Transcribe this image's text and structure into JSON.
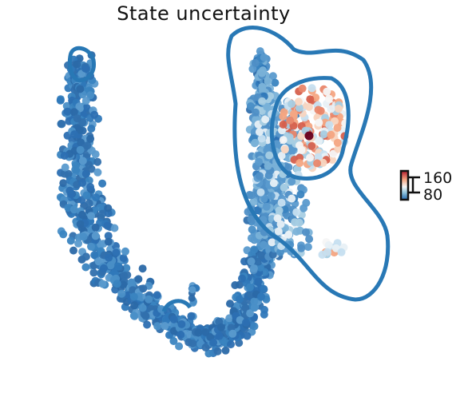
{
  "chart_data": {
    "type": "scatter",
    "title": "State uncertainty",
    "xlabel": "",
    "ylabel": "",
    "grid": false,
    "colorbar": {
      "ticks": [
        160,
        80
      ],
      "colormap": [
        "#2166ac",
        "#4393c3",
        "#92c5de",
        "#f7f7f7",
        "#f4a582",
        "#d6604d",
        "#67001f"
      ],
      "range": [
        60,
        170
      ]
    },
    "contour_color": "#2878b5",
    "low_color": "#2c6fb2",
    "highlight_color": "#67001f"
  }
}
